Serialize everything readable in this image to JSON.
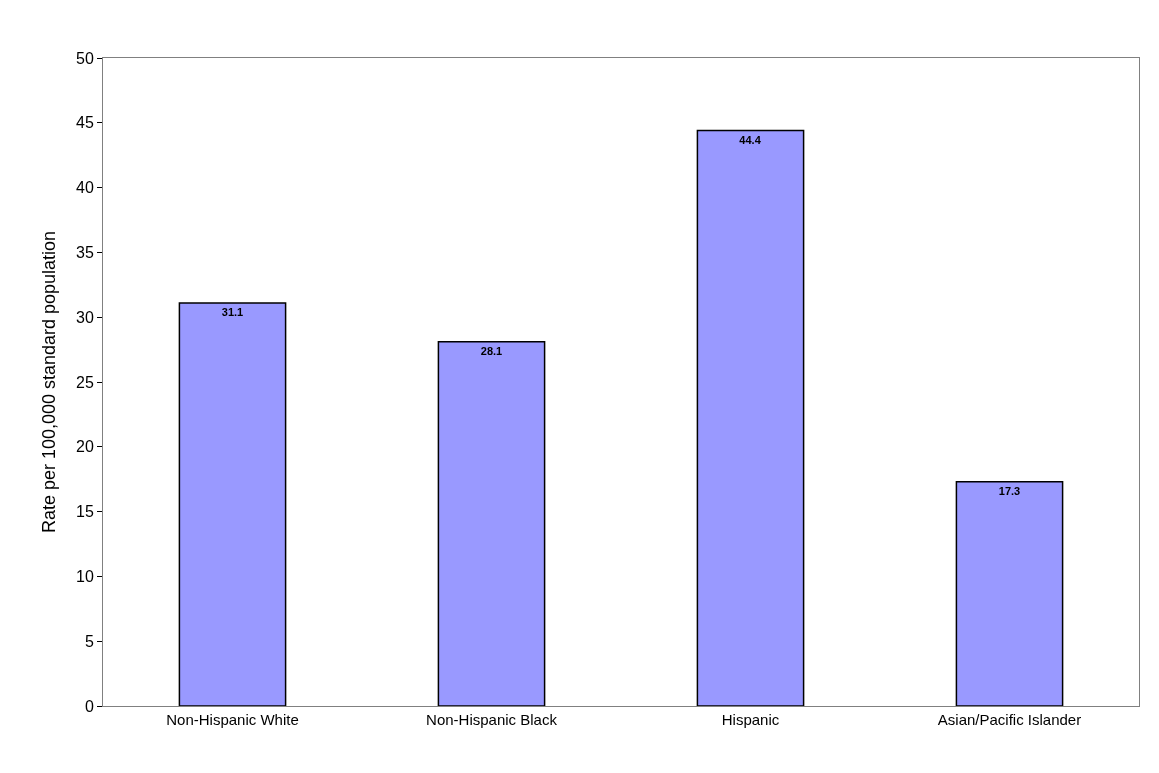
{
  "chart_data": {
    "type": "bar",
    "ylabel": "Rate per 100,000 standard population",
    "categories": [
      "Non-Hispanic White",
      "Non-Hispanic Black",
      "Hispanic",
      "Asian/Pacific Islander"
    ],
    "values": [
      31.1,
      28.1,
      44.4,
      17.3
    ],
    "color": "#9999ff",
    "ylim": [
      0,
      50
    ],
    "yticks": [
      0,
      5,
      10,
      15,
      20,
      25,
      30,
      35,
      40,
      45,
      50
    ],
    "data_labels": true
  }
}
